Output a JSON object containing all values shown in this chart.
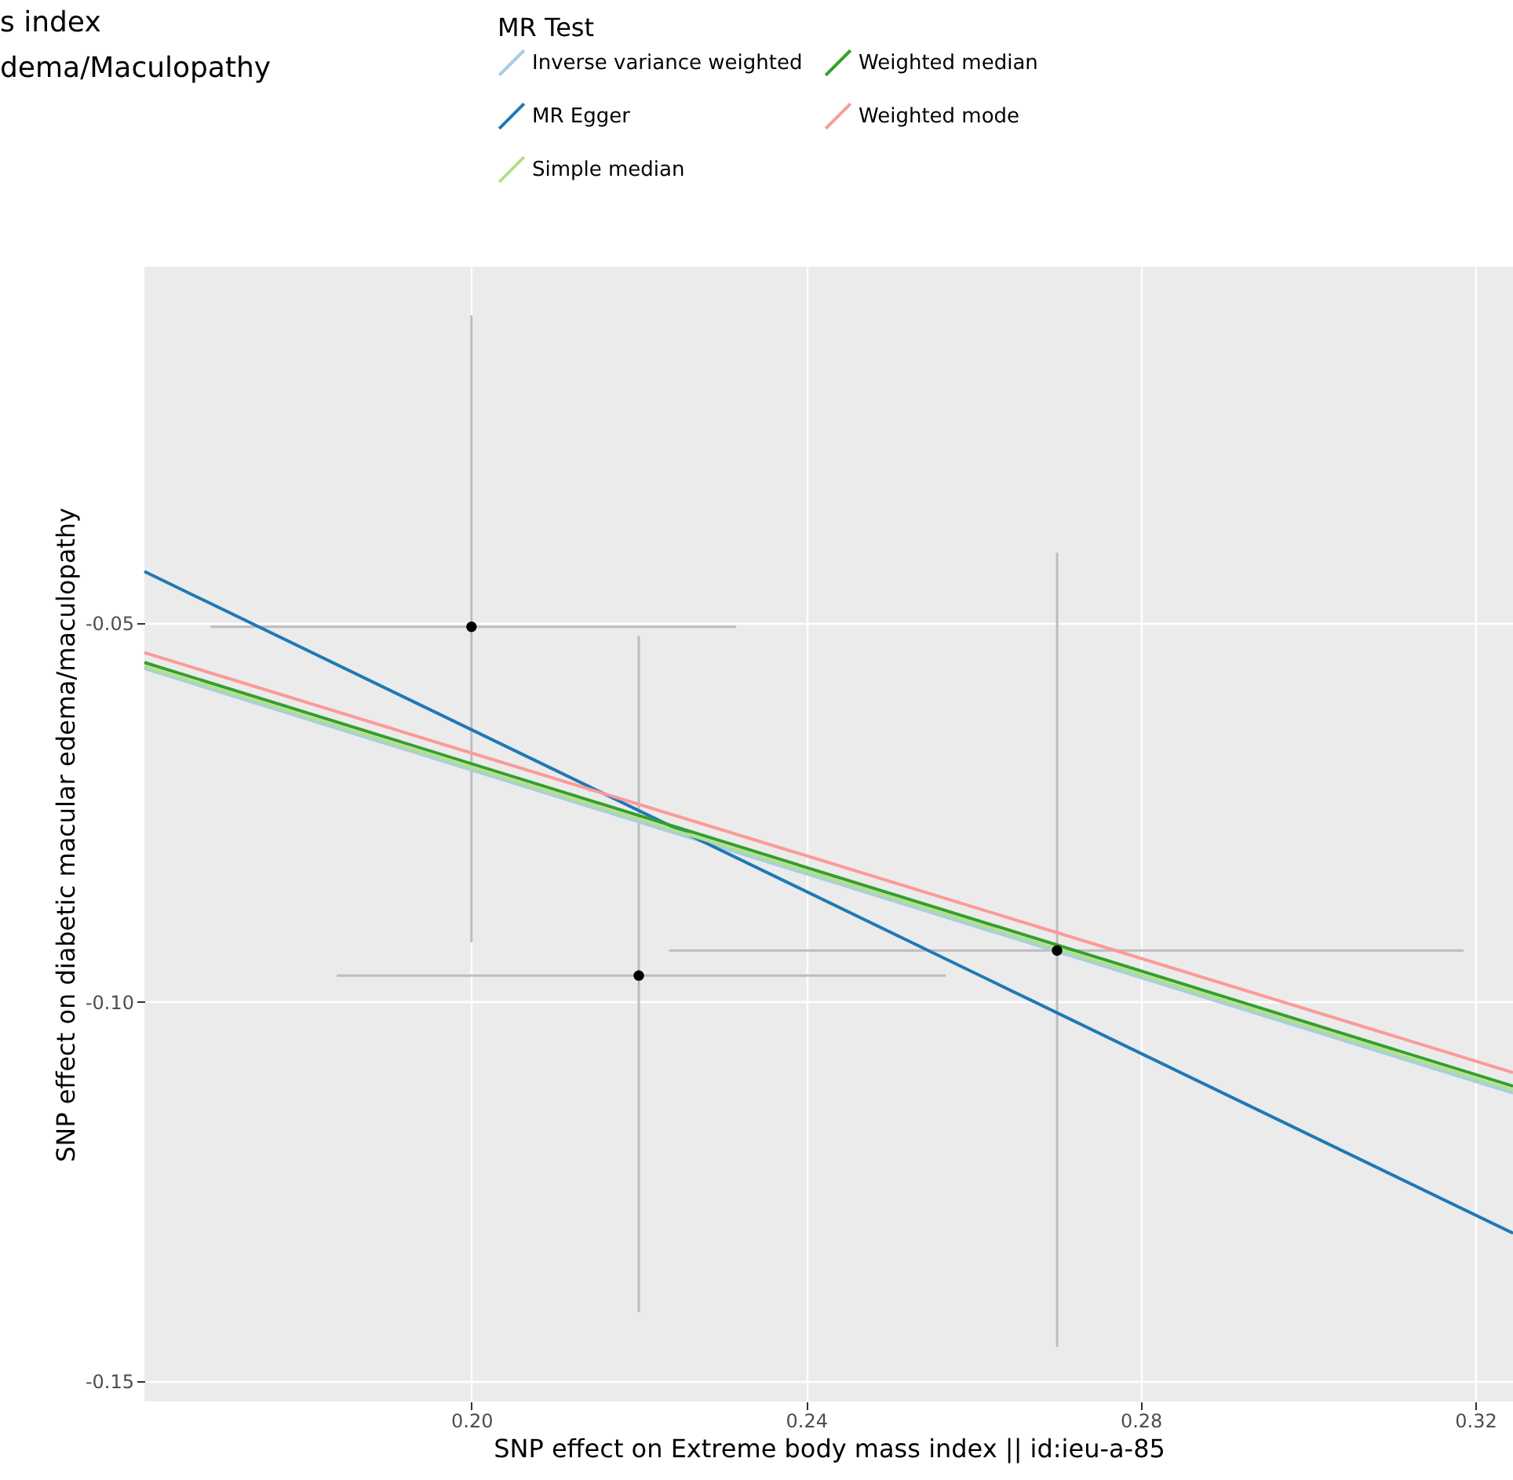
{
  "chart_data": {
    "type": "scatter",
    "title": [
      "s index",
      "dema/Maculopathy"
    ],
    "xlabel": "SNP effect on Extreme body mass index || id:ieu-a-85",
    "ylabel": "SNP effect on diabetic macular edema/maculopathy",
    "legend_title": "MR Test",
    "legend": "top",
    "grid": true,
    "xlim": [
      0.1609,
      0.3245
    ],
    "ylim": [
      -0.1527,
      -0.003
    ],
    "xticks": [
      {
        "value": 0.2,
        "label": "0.20"
      },
      {
        "value": 0.24,
        "label": "0.24"
      },
      {
        "value": 0.28,
        "label": "0.28"
      },
      {
        "value": 0.32,
        "label": "0.32"
      }
    ],
    "yticks": [
      -0.05,
      {
        "value": -0.1,
        "label": "-0.10"
      },
      -0.15
    ],
    "series": [
      {
        "color": "#000000",
        "x": [
          0.2,
          0.22,
          0.27
        ],
        "values": [
          -0.0505,
          -0.0965,
          -0.0932
        ],
        "errors": [
          [
            -0.0921,
            -0.0094
          ],
          [
            -0.1409,
            -0.0517
          ],
          [
            -0.1455,
            -0.0407
          ]
        ],
        "xerrors": [
          [
            0.1688,
            0.2316
          ],
          [
            0.1839,
            0.2567
          ],
          [
            0.2236,
            0.3186
          ]
        ]
      },
      {
        "type": "line",
        "name": "Inverse variance weighted",
        "color": "#a6cee3",
        "x": [
          0.1609,
          0.3245
        ],
        "values": [
          -0.056,
          -0.112
        ]
      },
      {
        "type": "line",
        "name": "MR Egger",
        "color": "#1f78b4",
        "x": [
          0.1609,
          0.3245
        ],
        "values": [
          -0.0432,
          -0.1305
        ]
      },
      {
        "type": "line",
        "name": "Simple median",
        "color": "#b2df8a",
        "x": [
          0.1609,
          0.3245
        ],
        "values": [
          -0.0557,
          -0.1116
        ]
      },
      {
        "type": "line",
        "name": "Weighted median",
        "color": "#33a02c",
        "x": [
          0.1609,
          0.3245
        ],
        "values": [
          -0.0552,
          -0.1111
        ]
      },
      {
        "type": "line",
        "name": "Weighted mode",
        "color": "#fb9a99",
        "x": [
          0.1609,
          0.3245
        ],
        "values": [
          -0.0539,
          -0.1093
        ]
      }
    ]
  }
}
